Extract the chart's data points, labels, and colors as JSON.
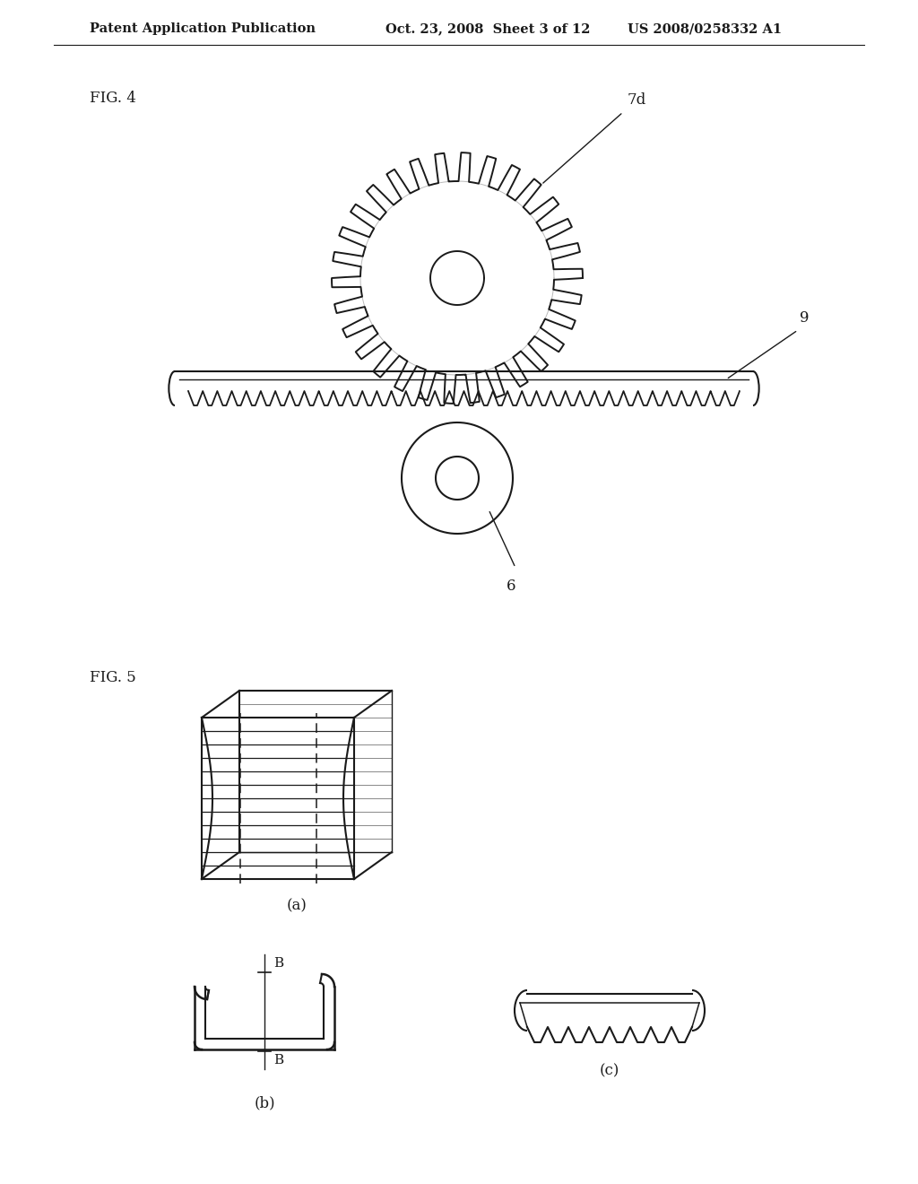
{
  "bg_color": "#ffffff",
  "header_text_left": "Patent Application Publication",
  "header_text_mid": "Oct. 23, 2008  Sheet 3 of 12",
  "header_text_right": "US 2008/0258332 A1",
  "fig4_label": "FIG. 4",
  "fig5_label": "FIG. 5",
  "label_7d": "7d",
  "label_9": "9",
  "label_6": "6",
  "label_a": "(a)",
  "label_b": "(b)",
  "label_c": "(c)",
  "line_color": "#1a1a1a",
  "font_size_header": 10.5,
  "font_size_fig": 12
}
